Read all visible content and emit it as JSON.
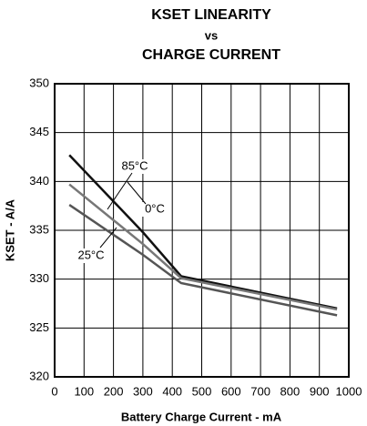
{
  "chart_data": {
    "type": "line",
    "title": [
      "KSET LINEARITY",
      "vs",
      "CHARGE CURRENT"
    ],
    "x_label": "Battery Charge Current - mA",
    "y_label": "KSET - A/A",
    "x": [
      50,
      300,
      430,
      960
    ],
    "series": [
      {
        "name": "85°C",
        "color": "#111111",
        "values": [
          342.7,
          334.8,
          330.3,
          327.0
        ]
      },
      {
        "name": "0°C",
        "color": "#777777",
        "values": [
          339.7,
          333.6,
          330.1,
          326.9
        ]
      },
      {
        "name": "25°C",
        "color": "#555555",
        "values": [
          337.6,
          332.5,
          329.6,
          326.3
        ]
      }
    ],
    "xlim": [
      0,
      1000
    ],
    "xticks": [
      0,
      100,
      200,
      300,
      400,
      500,
      600,
      700,
      800,
      900,
      1000
    ],
    "ylim": [
      320,
      350
    ],
    "yticks": [
      320,
      325,
      330,
      335,
      340,
      345,
      350
    ],
    "grid": true
  }
}
